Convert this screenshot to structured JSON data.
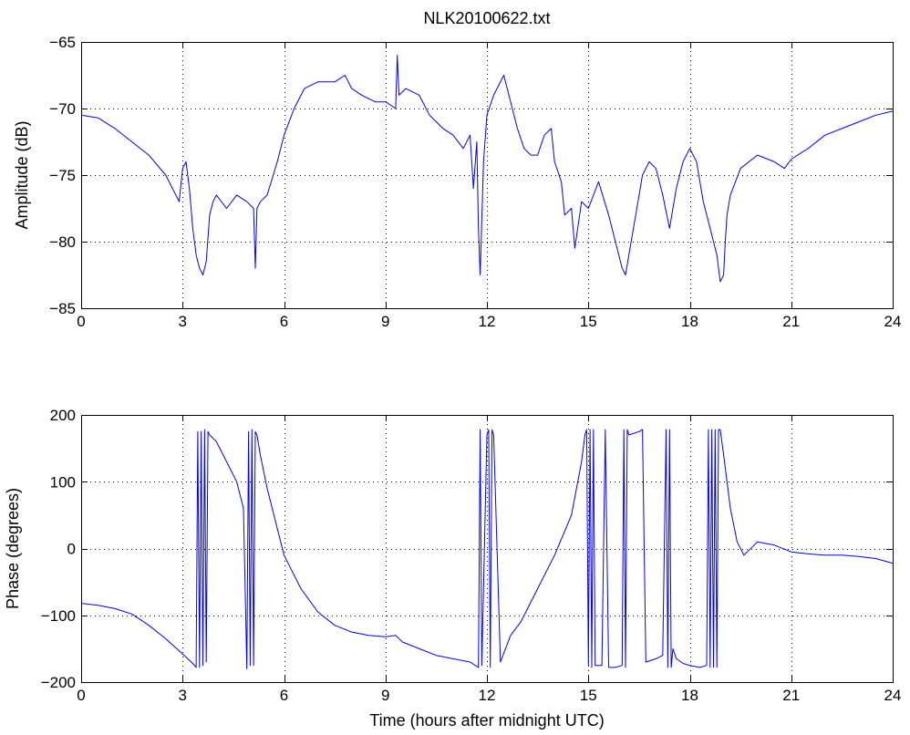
{
  "chart_data": [
    {
      "type": "line",
      "title": "NLK20100622.txt",
      "xlabel": "",
      "ylabel": "Amplitude (dB)",
      "xlim": [
        0,
        24
      ],
      "ylim": [
        -85,
        -65
      ],
      "xticks": [
        0,
        3,
        6,
        9,
        12,
        15,
        18,
        21,
        24
      ],
      "yticks": [
        -85,
        -80,
        -75,
        -70,
        -65
      ],
      "grid": true,
      "color": "#0000ff",
      "series": [
        {
          "name": "",
          "x": [
            0,
            0.5,
            1.0,
            1.5,
            2.0,
            2.5,
            2.9,
            3.0,
            3.1,
            3.2,
            3.3,
            3.4,
            3.5,
            3.6,
            3.7,
            3.8,
            3.9,
            4.0,
            4.3,
            4.6,
            4.9,
            5.1,
            5.15,
            5.2,
            5.3,
            5.5,
            5.8,
            6.0,
            6.3,
            6.6,
            7.0,
            7.5,
            7.8,
            8.0,
            8.3,
            8.7,
            9.0,
            9.3,
            9.35,
            9.4,
            9.6,
            10.0,
            10.3,
            10.7,
            11.0,
            11.3,
            11.5,
            11.6,
            11.7,
            11.75,
            11.8,
            11.9,
            12.0,
            12.2,
            12.5,
            12.7,
            12.9,
            13.1,
            13.3,
            13.5,
            13.7,
            13.9,
            14.0,
            14.2,
            14.3,
            14.5,
            14.6,
            14.8,
            15.0,
            15.3,
            15.6,
            15.8,
            16.0,
            16.1,
            16.2,
            16.4,
            16.6,
            16.8,
            17.0,
            17.2,
            17.4,
            17.6,
            17.8,
            18.0,
            18.2,
            18.4,
            18.6,
            18.8,
            18.9,
            19.0,
            19.05,
            19.1,
            19.2,
            19.5,
            20.0,
            20.5,
            20.8,
            21.0,
            21.5,
            22.0,
            22.5,
            23.0,
            23.5,
            24.0
          ],
          "values": [
            -70.5,
            -70.7,
            -71.5,
            -72.5,
            -73.5,
            -75.0,
            -77.0,
            -74.5,
            -74.0,
            -76.0,
            -79.0,
            -81.0,
            -82.0,
            -82.5,
            -81.5,
            -78.0,
            -77.0,
            -76.5,
            -77.5,
            -76.5,
            -77.0,
            -77.5,
            -82.0,
            -77.5,
            -77.0,
            -76.5,
            -74.0,
            -72.0,
            -70.0,
            -68.5,
            -68.0,
            -68.0,
            -67.5,
            -68.5,
            -69.0,
            -69.5,
            -69.5,
            -70.0,
            -66.0,
            -69.0,
            -68.5,
            -69.0,
            -70.5,
            -71.5,
            -72.0,
            -73.0,
            -72.0,
            -76.0,
            -72.5,
            -79.0,
            -82.5,
            -74.0,
            -70.5,
            -69.0,
            -67.5,
            -69.5,
            -71.5,
            -73.0,
            -73.5,
            -73.5,
            -72.0,
            -71.5,
            -74.0,
            -75.5,
            -78.0,
            -77.5,
            -80.5,
            -77.0,
            -77.5,
            -75.5,
            -78.0,
            -80.0,
            -82.0,
            -82.5,
            -81.0,
            -78.0,
            -75.0,
            -74.0,
            -74.5,
            -76.5,
            -79.0,
            -76.0,
            -74.0,
            -73.0,
            -74.0,
            -77.0,
            -79.0,
            -81.0,
            -83.0,
            -82.5,
            -80.0,
            -78.0,
            -76.5,
            -74.5,
            -73.5,
            -74.0,
            -74.5,
            -73.8,
            -73.0,
            -72.0,
            -71.5,
            -71.0,
            -70.5,
            -70.2
          ]
        }
      ]
    },
    {
      "type": "line",
      "title": "",
      "xlabel": "Time (hours after midnight UTC)",
      "ylabel": "Phase (degrees)",
      "xlim": [
        0,
        24
      ],
      "ylim": [
        -200,
        200
      ],
      "xticks": [
        0,
        3,
        6,
        9,
        12,
        15,
        18,
        21,
        24
      ],
      "yticks": [
        -200,
        -100,
        0,
        100,
        200
      ],
      "grid": true,
      "color": "#0000ff",
      "series": [
        {
          "name": "",
          "x": [
            0,
            0.5,
            1.0,
            1.5,
            2.0,
            2.5,
            3.0,
            3.3,
            3.4,
            3.45,
            3.5,
            3.55,
            3.6,
            3.65,
            3.7,
            3.75,
            3.8,
            4.0,
            4.2,
            4.4,
            4.6,
            4.8,
            4.9,
            4.95,
            5.0,
            5.05,
            5.1,
            5.15,
            5.2,
            5.3,
            5.5,
            5.8,
            6.0,
            6.5,
            7.0,
            7.5,
            8.0,
            8.5,
            9.0,
            9.3,
            9.5,
            10.0,
            10.5,
            11.0,
            11.5,
            11.75,
            11.8,
            11.85,
            12.0,
            12.05,
            12.1,
            12.15,
            12.2,
            12.4,
            12.7,
            13.0,
            13.5,
            14.0,
            14.5,
            14.8,
            14.9,
            14.95,
            15.0,
            15.05,
            15.1,
            15.15,
            15.2,
            15.4,
            15.5,
            15.6,
            15.8,
            16.0,
            16.05,
            16.1,
            16.15,
            16.2,
            16.5,
            16.6,
            16.7,
            17.0,
            17.2,
            17.3,
            17.35,
            17.4,
            17.45,
            17.5,
            17.6,
            17.8,
            18.0,
            18.3,
            18.5,
            18.55,
            18.6,
            18.65,
            18.7,
            18.75,
            18.8,
            18.85,
            18.9,
            19.0,
            19.2,
            19.4,
            19.6,
            20.0,
            20.5,
            21.0,
            21.5,
            22.0,
            22.5,
            23.0,
            23.5,
            24.0
          ],
          "values": [
            -82,
            -85,
            -90,
            -98,
            -115,
            -135,
            -158,
            -172,
            -178,
            175,
            -178,
            175,
            -175,
            178,
            -170,
            175,
            170,
            160,
            140,
            120,
            100,
            60,
            -180,
            175,
            -175,
            178,
            -175,
            175,
            170,
            140,
            90,
            30,
            -10,
            -60,
            -95,
            -115,
            -125,
            -130,
            -132,
            -130,
            -140,
            -150,
            -160,
            -165,
            -170,
            -178,
            178,
            -175,
            170,
            178,
            -178,
            178,
            170,
            -170,
            -130,
            -110,
            -60,
            -10,
            50,
            130,
            170,
            178,
            -175,
            178,
            -178,
            178,
            -175,
            -175,
            178,
            -178,
            -178,
            -175,
            178,
            -178,
            178,
            170,
            175,
            178,
            -170,
            -165,
            -160,
            178,
            -178,
            178,
            -178,
            -150,
            -165,
            -172,
            -175,
            -178,
            -175,
            178,
            -178,
            178,
            -178,
            178,
            -178,
            178,
            178,
            140,
            60,
            10,
            -10,
            10,
            5,
            -5,
            -8,
            -10,
            -10,
            -12,
            -15,
            -22
          ]
        }
      ]
    }
  ]
}
